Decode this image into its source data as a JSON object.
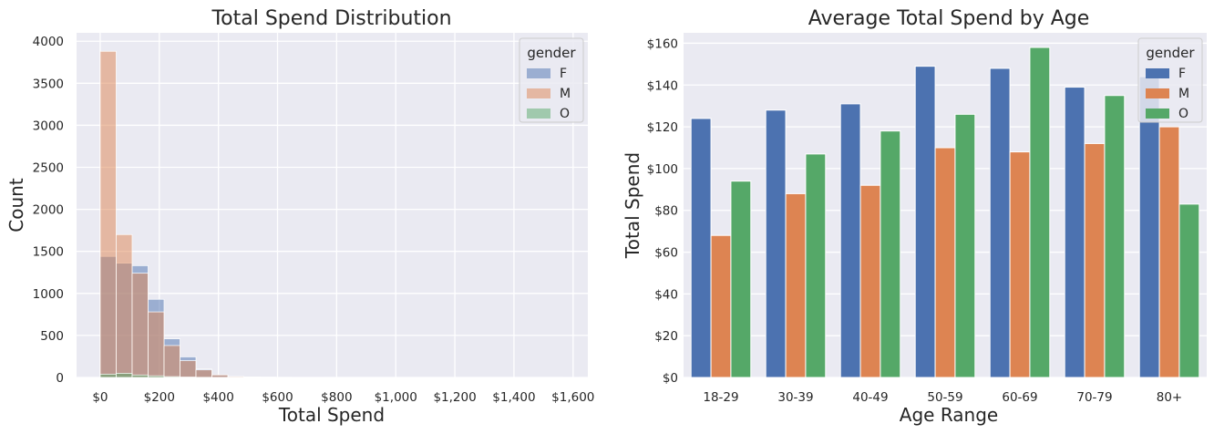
{
  "chart_data": [
    {
      "type": "bar",
      "subtype": "histogram",
      "title": "Total Spend Distribution",
      "xlabel": "Total Spend",
      "ylabel": "Count",
      "xlim": [
        -80,
        1650
      ],
      "ylim": [
        0,
        4100
      ],
      "x_ticks": [
        0,
        200,
        400,
        600,
        800,
        1000,
        1200,
        1400,
        1600
      ],
      "x_tick_labels": [
        "$0",
        "$200",
        "$400",
        "$600",
        "$800",
        "$1,000",
        "$1,200",
        "$1,400",
        "$1,600"
      ],
      "y_ticks": [
        0,
        500,
        1000,
        1500,
        2000,
        2500,
        3000,
        3500,
        4000
      ],
      "y_tick_labels": [
        "0",
        "500",
        "1000",
        "1500",
        "2000",
        "2500",
        "3000",
        "3500",
        "4000"
      ],
      "bin_width": 54,
      "bin_start": 0,
      "grid": true,
      "legend": {
        "title": "gender",
        "position": "top-right"
      },
      "series": [
        {
          "name": "F",
          "color": "#4c72b0",
          "values": [
            1440,
            1360,
            1330,
            930,
            460,
            245,
            100,
            30,
            10,
            6,
            4,
            2,
            1,
            1,
            0,
            0,
            0,
            0,
            0,
            0,
            0,
            0,
            0,
            0,
            0,
            0,
            0,
            0,
            0,
            1
          ]
        },
        {
          "name": "M",
          "color": "#dd8452",
          "values": [
            3880,
            1700,
            1240,
            780,
            380,
            200,
            90,
            30,
            10,
            6,
            4,
            2,
            1,
            1,
            0,
            0,
            0,
            0,
            0,
            0,
            0,
            0,
            0,
            0,
            0,
            0,
            0,
            0,
            0,
            0
          ]
        },
        {
          "name": "O",
          "color": "#55a868",
          "values": [
            40,
            50,
            30,
            20,
            10,
            5,
            2,
            1,
            0,
            0,
            0,
            0,
            0,
            0,
            0,
            0,
            0,
            0,
            0,
            0,
            0,
            0,
            0,
            0,
            0,
            0,
            0,
            0,
            0,
            0
          ]
        }
      ]
    },
    {
      "type": "bar",
      "title": "Average Total Spend by Age",
      "xlabel": "Age Range",
      "ylabel": "Total Spend",
      "categories": [
        "18-29",
        "30-39",
        "40-49",
        "50-59",
        "60-69",
        "70-79",
        "80+"
      ],
      "ylim": [
        0,
        165
      ],
      "y_ticks": [
        0,
        20,
        40,
        60,
        80,
        100,
        120,
        140,
        160
      ],
      "y_tick_labels": [
        "$0",
        "$20",
        "$40",
        "$60",
        "$80",
        "$100",
        "$120",
        "$140",
        "$160"
      ],
      "grid": true,
      "legend": {
        "title": "gender",
        "position": "top-right"
      },
      "series": [
        {
          "name": "F",
          "color": "#4c72b0",
          "values": [
            124,
            128,
            131,
            149,
            148,
            139,
            144
          ]
        },
        {
          "name": "M",
          "color": "#dd8452",
          "values": [
            68,
            88,
            92,
            110,
            108,
            112,
            120
          ]
        },
        {
          "name": "O",
          "color": "#55a868",
          "values": [
            94,
            107,
            118,
            126,
            158,
            135,
            83
          ]
        }
      ]
    }
  ]
}
